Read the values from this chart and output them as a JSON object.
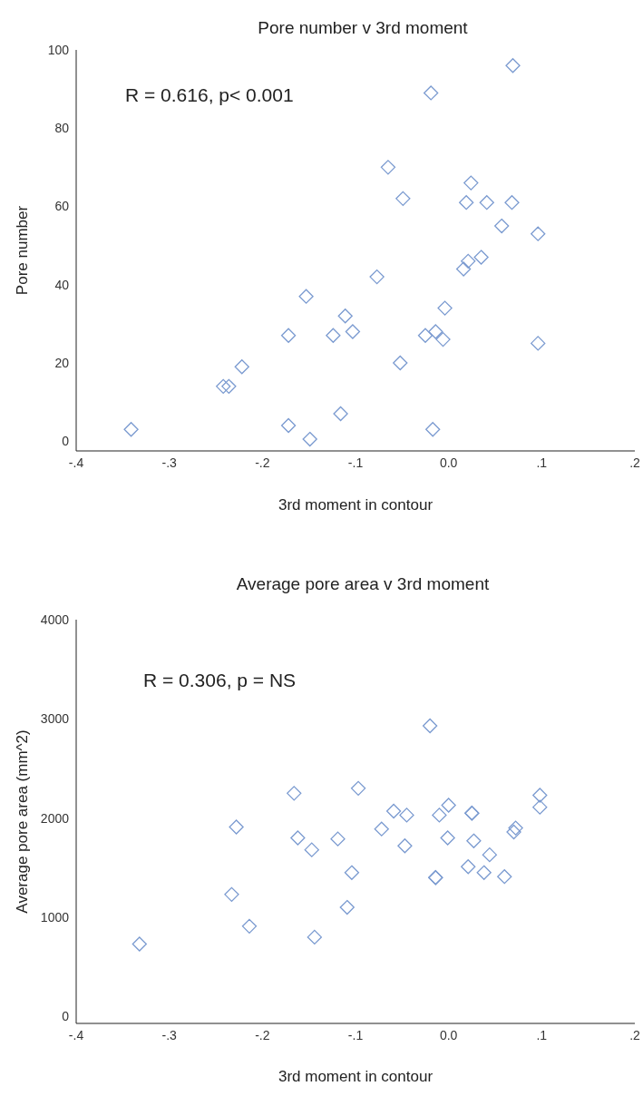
{
  "chart_data": [
    {
      "type": "scatter",
      "title": "Pore number v 3rd moment",
      "xlabel": "3rd moment in contour",
      "ylabel": "Pore number",
      "annotations": [
        "R = 0.616, p< 0.001"
      ],
      "x": [
        -0.341,
        -0.242,
        -0.236,
        -0.222,
        -0.172,
        -0.153,
        -0.172,
        -0.149,
        -0.124,
        -0.111,
        -0.103,
        -0.116,
        -0.077,
        -0.065,
        -0.049,
        -0.052,
        -0.019,
        -0.025,
        -0.014,
        -0.006,
        -0.004,
        -0.017,
        0.024,
        0.019,
        0.041,
        0.068,
        0.057,
        0.096,
        0.021,
        0.035,
        0.016,
        0.069,
        0.096
      ],
      "series": [
        {
          "color": "#7a9ad0",
          "values": [
            3,
            14,
            14,
            19,
            27,
            37,
            4,
            0.5,
            27,
            32,
            28,
            7,
            42,
            70,
            62,
            20,
            89,
            27,
            28,
            26,
            34,
            3,
            66,
            61,
            61,
            61,
            55,
            53,
            46,
            47,
            44,
            96,
            25
          ]
        }
      ],
      "xlim": [
        -0.4,
        0.2
      ],
      "xticks": [
        {
          "value": -0.4,
          "label": "-.4"
        },
        {
          "value": -0.3,
          "label": "-.3"
        },
        {
          "value": -0.2,
          "label": "-.2"
        },
        {
          "value": -0.1,
          "label": "-.1"
        },
        {
          "value": 0,
          "label": "0.0"
        },
        {
          "value": 0.1,
          "label": ".1"
        },
        {
          "value": 0.2,
          "label": ".2"
        }
      ],
      "ylim": [
        -2.5,
        100
      ],
      "yticks": [
        0,
        20,
        40,
        60,
        80,
        100
      ],
      "grid": false,
      "legend": false,
      "marker": "diamond"
    },
    {
      "type": "scatter",
      "title": "Average pore area v 3rd moment",
      "xlabel": "3rd moment in contour",
      "ylabel": "Average pore area (mm^2)",
      "annotations": [
        "R = 0.306, p = NS"
      ],
      "x": [
        -0.332,
        -0.233,
        -0.228,
        -0.214,
        -0.166,
        -0.162,
        -0.147,
        -0.144,
        -0.119,
        -0.109,
        -0.104,
        -0.097,
        -0.072,
        -0.059,
        -0.045,
        -0.047,
        -0.02,
        -0.01,
        0,
        -0.001,
        -0.014,
        -0.014,
        0.025,
        0.025,
        0.027,
        0.021,
        0.038,
        0.044,
        0.06,
        0.07,
        0.072,
        0.098,
        0.098
      ],
      "series": [
        {
          "color": "#7a9ad0",
          "values": [
            730,
            1230,
            1910,
            910,
            2250,
            1800,
            1680,
            800,
            1790,
            1100,
            1450,
            2300,
            1890,
            2070,
            2030,
            1720,
            2930,
            2030,
            2130,
            1800,
            1400,
            1400,
            2050,
            2050,
            1770,
            1510,
            1450,
            1630,
            1410,
            1860,
            1900,
            2230,
            2110
          ]
        }
      ],
      "xlim": [
        -0.4,
        0.2
      ],
      "xticks": [
        {
          "value": -0.4,
          "label": "-.4"
        },
        {
          "value": -0.3,
          "label": "-.3"
        },
        {
          "value": -0.2,
          "label": "-.2"
        },
        {
          "value": -0.1,
          "label": "-.1"
        },
        {
          "value": 0,
          "label": "0.0"
        },
        {
          "value": 0.1,
          "label": ".1"
        },
        {
          "value": 0.2,
          "label": ".2"
        }
      ],
      "ylim": [
        -70,
        4000
      ],
      "yticks": [
        0,
        1000,
        2000,
        3000,
        4000
      ],
      "grid": false,
      "legend": false,
      "marker": "diamond"
    }
  ]
}
